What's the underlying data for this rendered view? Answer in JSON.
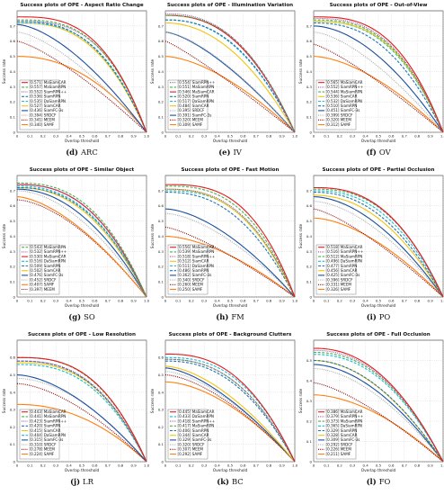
{
  "styles": {
    "MaSiamCAR": {
      "color": "#e41a1c",
      "dash": ""
    },
    "MaSiamRPN": {
      "color": "#4daf4a",
      "dash": "3,1.6"
    },
    "SiamRPN++": {
      "color": "#984ea3",
      "dash": "1,1.2"
    },
    "SiamRPN": {
      "color": "#1f77b4",
      "dash": "3,1.6"
    },
    "DaSiamRPN": {
      "color": "#17becf",
      "dash": "3,1.6"
    },
    "SiamCAR": {
      "color": "#f1c40f",
      "dash": ""
    },
    "SiamFC-3s": {
      "color": "#1a4fa0",
      "dash": ""
    },
    "SRDCF": {
      "color": "#aaaaaa",
      "dash": "1,1.2"
    },
    "MEEM": {
      "color": "#8b0000",
      "dash": "1,1.2"
    },
    "SAMF": {
      "color": "#ff7f0e",
      "dash": ""
    }
  },
  "chart_data": [
    {
      "type": "line",
      "title": "Success plots of OPE - Aspect Ratio Change",
      "xlabel": "Overlap threshold",
      "ylabel": "Success rate",
      "xlim": [
        0,
        1
      ],
      "ylim": [
        0,
        0.8
      ],
      "yticks": [
        "0",
        "0.1",
        "0.2",
        "0.3",
        "0.4",
        "0.5",
        "0.6",
        "0.7"
      ],
      "xticks": [
        "0",
        "0.1",
        "0.2",
        "0.3",
        "0.4",
        "0.5",
        "0.6",
        "0.7",
        "0.8",
        "0.9",
        "1.0"
      ],
      "legend_position": "lower-left",
      "caption_letter": "(d)",
      "caption_abbr": "ARC",
      "series": [
        {
          "label": "[0.571] MaSiamCAR",
          "style": "MaSiamCAR",
          "start": 0.76,
          "auc": 0.571
        },
        {
          "label": "[0.557] MaSiamRPN",
          "style": "MaSiamRPN",
          "start": 0.74,
          "auc": 0.557
        },
        {
          "label": "[0.552] SiamRPN++",
          "style": "SiamRPN++",
          "start": 0.73,
          "auc": 0.552
        },
        {
          "label": "[0.536] SiamRPN",
          "style": "SiamRPN",
          "start": 0.73,
          "auc": 0.536
        },
        {
          "label": "[0.535] DaSiamRPN",
          "style": "DaSiamRPN",
          "start": 0.72,
          "auc": 0.535
        },
        {
          "label": "[0.527] SiamCAR",
          "style": "SiamCAR",
          "start": 0.72,
          "auc": 0.527
        },
        {
          "label": "[0.436] SiamFC-3s",
          "style": "SiamFC-3s",
          "start": 0.71,
          "auc": 0.436
        },
        {
          "label": "[0.394] SRDCF",
          "style": "SRDCF",
          "start": 0.66,
          "auc": 0.394
        },
        {
          "label": "[0.341] MEEM",
          "style": "MEEM",
          "start": 0.6,
          "auc": 0.341
        },
        {
          "label": "[0.340] SAMF",
          "style": "SAMF",
          "start": 0.5,
          "auc": 0.34
        }
      ]
    },
    {
      "type": "line",
      "title": "Success plots of OPE - Illumination Variation",
      "xlabel": "Overlap threshold",
      "ylabel": "Success rate",
      "xlim": [
        0,
        1
      ],
      "ylim": [
        0,
        0.8
      ],
      "yticks": [
        "0",
        "0.1",
        "0.2",
        "0.3",
        "0.4",
        "0.5",
        "0.6",
        "0.7"
      ],
      "xticks": [
        "0",
        "0.1",
        "0.2",
        "0.3",
        "0.4",
        "0.5",
        "0.6",
        "0.7",
        "0.8",
        "0.9",
        "1.0"
      ],
      "legend_position": "lower-left",
      "caption_letter": "(e)",
      "caption_abbr": "IV",
      "series": [
        {
          "label": "[0.554] SiamRPN++",
          "style": "SiamRPN++",
          "start": 0.78,
          "auc": 0.554
        },
        {
          "label": "[0.551] MaSiamRPN",
          "style": "MaSiamRPN",
          "start": 0.77,
          "auc": 0.551
        },
        {
          "label": "[0.546] MaSiamCAR",
          "style": "MaSiamCAR",
          "start": 0.77,
          "auc": 0.546
        },
        {
          "label": "[0.520] SiamRPN",
          "style": "SiamRPN",
          "start": 0.74,
          "auc": 0.52
        },
        {
          "label": "[0.517] DaSiamRPN",
          "style": "DaSiamRPN",
          "start": 0.74,
          "auc": 0.517
        },
        {
          "label": "[0.484] SiamCAR",
          "style": "SiamCAR",
          "start": 0.72,
          "auc": 0.484
        },
        {
          "label": "[0.395] SRDCF",
          "style": "SRDCF",
          "start": 0.66,
          "auc": 0.395
        },
        {
          "label": "[0.391] SiamFC-3s",
          "style": "SiamFC-3s",
          "start": 0.66,
          "auc": 0.391
        },
        {
          "label": "[0.320] MEEM",
          "style": "MEEM",
          "start": 0.6,
          "auc": 0.32
        },
        {
          "label": "[0.309] SAMF",
          "style": "SAMF",
          "start": 0.5,
          "auc": 0.309
        }
      ]
    },
    {
      "type": "line",
      "title": "Success plots of OPE - Out-of-View",
      "xlabel": "Overlap threshold",
      "ylabel": "Success rate",
      "xlim": [
        0,
        1
      ],
      "ylim": [
        0,
        0.8
      ],
      "yticks": [
        "0",
        "0.1",
        "0.2",
        "0.3",
        "0.4",
        "0.5",
        "0.6",
        "0.7"
      ],
      "xticks": [
        "0",
        "0.1",
        "0.2",
        "0.3",
        "0.4",
        "0.5",
        "0.6",
        "0.7",
        "0.8",
        "0.9",
        "1.0"
      ],
      "legend_position": "lower-left",
      "caption_letter": "(f)",
      "caption_abbr": "OV",
      "series": [
        {
          "label": "[0.565] MaSiamCAR",
          "style": "MaSiamCAR",
          "start": 0.76,
          "auc": 0.565
        },
        {
          "label": "[0.552] SiamRPN++",
          "style": "SiamRPN++",
          "start": 0.75,
          "auc": 0.552
        },
        {
          "label": "[0.544] MaSiamRPN",
          "style": "MaSiamRPN",
          "start": 0.74,
          "auc": 0.544
        },
        {
          "label": "[0.536] SiamCAR",
          "style": "SiamCAR",
          "start": 0.73,
          "auc": 0.536
        },
        {
          "label": "[0.532] DaSiamRPN",
          "style": "DaSiamRPN",
          "start": 0.73,
          "auc": 0.532
        },
        {
          "label": "[0.510] SiamRPN",
          "style": "SiamRPN",
          "start": 0.72,
          "auc": 0.51
        },
        {
          "label": "[0.451] SiamFC-3s",
          "style": "SiamFC-3s",
          "start": 0.7,
          "auc": 0.451
        },
        {
          "label": "[0.399] SRDCF",
          "style": "SRDCF",
          "start": 0.66,
          "auc": 0.399
        },
        {
          "label": "[0.320] MEEM",
          "style": "MEEM",
          "start": 0.58,
          "auc": 0.32
        },
        {
          "label": "[0.312] SAMF",
          "style": "SAMF",
          "start": 0.5,
          "auc": 0.312
        }
      ]
    },
    {
      "type": "line",
      "title": "Success plots of OPE - Similar Object",
      "xlabel": "Overlap threshold",
      "ylabel": "Success rate",
      "xlim": [
        0,
        1
      ],
      "ylim": [
        0,
        0.8
      ],
      "yticks": [
        "0",
        "0.1",
        "0.2",
        "0.3",
        "0.4",
        "0.5",
        "0.6",
        "0.7"
      ],
      "xticks": [
        "0",
        "0.1",
        "0.2",
        "0.3",
        "0.4",
        "0.5",
        "0.6",
        "0.7",
        "0.8",
        "0.9",
        "1.0"
      ],
      "legend_position": "lower-left",
      "caption_letter": "(g)",
      "caption_abbr": "SO",
      "series": [
        {
          "label": "[0.543] MaSiamRPN",
          "style": "MaSiamRPN",
          "start": 0.75,
          "auc": 0.543
        },
        {
          "label": "[0.532] SiamRPN++",
          "style": "SiamRPN++",
          "start": 0.74,
          "auc": 0.532
        },
        {
          "label": "[0.530] MaSiamCAR",
          "style": "MaSiamCAR",
          "start": 0.74,
          "auc": 0.53
        },
        {
          "label": "[0.516] DaSiamRPN",
          "style": "DaSiamRPN",
          "start": 0.73,
          "auc": 0.516
        },
        {
          "label": "[0.509] SiamRPN",
          "style": "SiamRPN",
          "start": 0.72,
          "auc": 0.509
        },
        {
          "label": "[0.502] SiamCAR",
          "style": "SiamCAR",
          "start": 0.72,
          "auc": 0.502
        },
        {
          "label": "[0.476] SiamFC-3s",
          "style": "SiamFC-3s",
          "start": 0.71,
          "auc": 0.476
        },
        {
          "label": "[0.452] SRDCF",
          "style": "SRDCF",
          "start": 0.7,
          "auc": 0.452
        },
        {
          "label": "[0.407] SAMF",
          "style": "SAMF",
          "start": 0.66,
          "auc": 0.407
        },
        {
          "label": "[0.397] MEEM",
          "style": "MEEM",
          "start": 0.64,
          "auc": 0.397
        }
      ]
    },
    {
      "type": "line",
      "title": "Success plots of OPE - Fast Motion",
      "xlabel": "Overlap threshold",
      "ylabel": "Success rate",
      "xlim": [
        0,
        1
      ],
      "ylim": [
        0,
        0.8
      ],
      "yticks": [
        "0",
        "0.1",
        "0.2",
        "0.3",
        "0.4",
        "0.5",
        "0.6",
        "0.7"
      ],
      "xticks": [
        "0",
        "0.1",
        "0.2",
        "0.3",
        "0.4",
        "0.5",
        "0.6",
        "0.7",
        "0.8",
        "0.9",
        "1.0"
      ],
      "legend_position": "lower-left",
      "caption_letter": "(h)",
      "caption_abbr": "FM",
      "series": [
        {
          "label": "[0.556] MaSiamCAR",
          "style": "MaSiamCAR",
          "start": 0.74,
          "auc": 0.556
        },
        {
          "label": "[0.539] MaSiamRPN",
          "style": "MaSiamRPN",
          "start": 0.73,
          "auc": 0.539
        },
        {
          "label": "[0.518] SiamRPN++",
          "style": "SiamRPN++",
          "start": 0.71,
          "auc": 0.518
        },
        {
          "label": "[0.512] SiamCAR",
          "style": "SiamCAR",
          "start": 0.71,
          "auc": 0.512
        },
        {
          "label": "[0.511] DaSiamRPN",
          "style": "DaSiamRPN",
          "start": 0.7,
          "auc": 0.511
        },
        {
          "label": "[0.486] SiamRPN",
          "style": "SiamRPN",
          "start": 0.69,
          "auc": 0.486
        },
        {
          "label": "[0.362] SiamFC-3s",
          "style": "SiamFC-3s",
          "start": 0.58,
          "auc": 0.362
        },
        {
          "label": "[0.340] SRDCF",
          "style": "SRDCF",
          "start": 0.55,
          "auc": 0.34
        },
        {
          "label": "[0.260] MEEM",
          "style": "MEEM",
          "start": 0.46,
          "auc": 0.26
        },
        {
          "label": "[0.250] SAMF",
          "style": "SAMF",
          "start": 0.4,
          "auc": 0.25
        }
      ]
    },
    {
      "type": "line",
      "title": "Success plots of OPE - Partial Occlusion",
      "xlabel": "Overlap threshold",
      "ylabel": "Success rate",
      "xlim": [
        0,
        1
      ],
      "ylim": [
        0,
        0.8
      ],
      "yticks": [
        "0",
        "0.1",
        "0.2",
        "0.3",
        "0.4",
        "0.5",
        "0.6",
        "0.7"
      ],
      "xticks": [
        "0",
        "0.1",
        "0.2",
        "0.3",
        "0.4",
        "0.5",
        "0.6",
        "0.7",
        "0.8",
        "0.9",
        "1.0"
      ],
      "legend_position": "lower-left",
      "caption_letter": "(i)",
      "caption_abbr": "PO",
      "series": [
        {
          "label": "[0.518] MaSiamCAR",
          "style": "MaSiamCAR",
          "start": 0.72,
          "auc": 0.518
        },
        {
          "label": "[0.516] SiamRPN++",
          "style": "SiamRPN++",
          "start": 0.72,
          "auc": 0.516
        },
        {
          "label": "[0.512] MaSiamRPN",
          "style": "MaSiamRPN",
          "start": 0.71,
          "auc": 0.512
        },
        {
          "label": "[0.496] DaSiamRPN",
          "style": "DaSiamRPN",
          "start": 0.7,
          "auc": 0.496
        },
        {
          "label": "[0.477] SiamRPN",
          "style": "SiamRPN",
          "start": 0.69,
          "auc": 0.477
        },
        {
          "label": "[0.456] SiamCAR",
          "style": "SiamCAR",
          "start": 0.67,
          "auc": 0.456
        },
        {
          "label": "[0.425] SiamFC-3s",
          "style": "SiamFC-3s",
          "start": 0.66,
          "auc": 0.425
        },
        {
          "label": "[0.396] SRDCF",
          "style": "SRDCF",
          "start": 0.63,
          "auc": 0.396
        },
        {
          "label": "[0.331] MEEM",
          "style": "MEEM",
          "start": 0.58,
          "auc": 0.331
        },
        {
          "label": "[0.326] SAMF",
          "style": "SAMF",
          "start": 0.52,
          "auc": 0.326
        }
      ]
    },
    {
      "type": "line",
      "title": "Success plots of OPE - Low Resolution",
      "xlabel": "Overlap threshold",
      "ylabel": "Success rate",
      "xlim": [
        0,
        1
      ],
      "ylim": [
        0,
        0.7
      ],
      "yticks": [
        "0",
        "0.1",
        "0.2",
        "0.3",
        "0.4",
        "0.5",
        "0.6"
      ],
      "xticks": [
        "0",
        "0.1",
        "0.2",
        "0.3",
        "0.4",
        "0.5",
        "0.6",
        "0.7",
        "0.8",
        "0.9",
        "1.0"
      ],
      "legend_position": "lower-left",
      "caption_letter": "(j)",
      "caption_abbr": "LR",
      "series": [
        {
          "label": "[0.443] MaSiamCAR",
          "style": "MaSiamCAR",
          "start": 0.6,
          "auc": 0.443
        },
        {
          "label": "[0.441] MaSiamRPN",
          "style": "MaSiamRPN",
          "start": 0.6,
          "auc": 0.441
        },
        {
          "label": "[0.423] SiamRPN++",
          "style": "SiamRPN++",
          "start": 0.58,
          "auc": 0.423
        },
        {
          "label": "[0.420] SiamRPN",
          "style": "SiamRPN",
          "start": 0.58,
          "auc": 0.42
        },
        {
          "label": "[0.415] SiamCAR",
          "style": "SiamCAR",
          "start": 0.57,
          "auc": 0.415
        },
        {
          "label": "[0.404] DaSiamRPN",
          "style": "DaSiamRPN",
          "start": 0.56,
          "auc": 0.404
        },
        {
          "label": "[0.315] SiamFC-3s",
          "style": "SiamFC-3s",
          "start": 0.5,
          "auc": 0.315
        },
        {
          "label": "[0.310] SRDCF",
          "style": "SRDCF",
          "start": 0.48,
          "auc": 0.31
        },
        {
          "label": "[0.278] MEEM",
          "style": "MEEM",
          "start": 0.45,
          "auc": 0.278
        },
        {
          "label": "[0.224] SAMF",
          "style": "SAMF",
          "start": 0.33,
          "auc": 0.224
        }
      ]
    },
    {
      "type": "line",
      "title": "Success plots of OPE - Background Clutters",
      "xlabel": "Overlap threshold",
      "ylabel": "Success rate",
      "xlim": [
        0,
        1
      ],
      "ylim": [
        0,
        0.7
      ],
      "yticks": [
        "0",
        "0.1",
        "0.2",
        "0.3",
        "0.4",
        "0.5",
        "0.6"
      ],
      "xticks": [
        "0",
        "0.1",
        "0.2",
        "0.3",
        "0.4",
        "0.5",
        "0.6",
        "0.7",
        "0.8",
        "0.9",
        "1.0"
      ],
      "legend_position": "lower-left",
      "caption_letter": "(k)",
      "caption_abbr": "BC",
      "series": [
        {
          "label": "[0.445] MaSiamCAR",
          "style": "MaSiamCAR",
          "start": 0.62,
          "auc": 0.445
        },
        {
          "label": "[0.433] DaSiamRPN",
          "style": "DaSiamRPN",
          "start": 0.6,
          "auc": 0.433
        },
        {
          "label": "[0.418] SiamRPN++",
          "style": "SiamRPN++",
          "start": 0.59,
          "auc": 0.418
        },
        {
          "label": "[0.417] MaSiamRPN",
          "style": "MaSiamRPN",
          "start": 0.59,
          "auc": 0.417
        },
        {
          "label": "[0.406] SiamRPN",
          "style": "SiamRPN",
          "start": 0.58,
          "auc": 0.406
        },
        {
          "label": "[0.344] SiamCAR",
          "style": "SiamCAR",
          "start": 0.55,
          "auc": 0.344
        },
        {
          "label": "[0.329] SiamFC-3s",
          "style": "SiamFC-3s",
          "start": 0.54,
          "auc": 0.329
        },
        {
          "label": "[0.320] SRDCF",
          "style": "SRDCF",
          "start": 0.52,
          "auc": 0.32
        },
        {
          "label": "[0.307] MEEM",
          "style": "MEEM",
          "start": 0.5,
          "auc": 0.307
        },
        {
          "label": "[0.292] SAMF",
          "style": "SAMF",
          "start": 0.46,
          "auc": 0.292
        }
      ]
    },
    {
      "type": "line",
      "title": "Success plots of OPE - Full Occlusion",
      "xlabel": "Overlap threshold",
      "ylabel": "Success rate",
      "xlim": [
        0,
        1
      ],
      "ylim": [
        0,
        0.6
      ],
      "yticks": [
        "0",
        "0.1",
        "0.2",
        "0.3",
        "0.4",
        "0.5"
      ],
      "xticks": [
        "0",
        "0.1",
        "0.2",
        "0.3",
        "0.4",
        "0.5",
        "0.6",
        "0.7",
        "0.8",
        "0.9",
        "1.0"
      ],
      "legend_position": "lower-left",
      "caption_letter": "(l)",
      "caption_abbr": "FO",
      "series": [
        {
          "label": "[0.386] MaSiamCAR",
          "style": "MaSiamCAR",
          "start": 0.56,
          "auc": 0.386
        },
        {
          "label": "[0.379] SiamRPN++",
          "style": "SiamRPN++",
          "start": 0.55,
          "auc": 0.379
        },
        {
          "label": "[0.373] MaSiamRPN",
          "style": "MaSiamRPN",
          "start": 0.54,
          "auc": 0.373
        },
        {
          "label": "[0.365] DaSiamRPN",
          "style": "DaSiamRPN",
          "start": 0.53,
          "auc": 0.365
        },
        {
          "label": "[0.329] SiamRPN",
          "style": "SiamRPN",
          "start": 0.5,
          "auc": 0.329
        },
        {
          "label": "[0.328] SiamCAR",
          "style": "SiamCAR",
          "start": 0.5,
          "auc": 0.328
        },
        {
          "label": "[0.309] SiamFC-3s",
          "style": "SiamFC-3s",
          "start": 0.48,
          "auc": 0.309
        },
        {
          "label": "[0.292] SRDCF",
          "style": "SRDCF",
          "start": 0.46,
          "auc": 0.292
        },
        {
          "label": "[0.226] MEEM",
          "style": "MEEM",
          "start": 0.39,
          "auc": 0.226
        },
        {
          "label": "[0.211] SAMF",
          "style": "SAMF",
          "start": 0.33,
          "auc": 0.211
        }
      ]
    }
  ]
}
